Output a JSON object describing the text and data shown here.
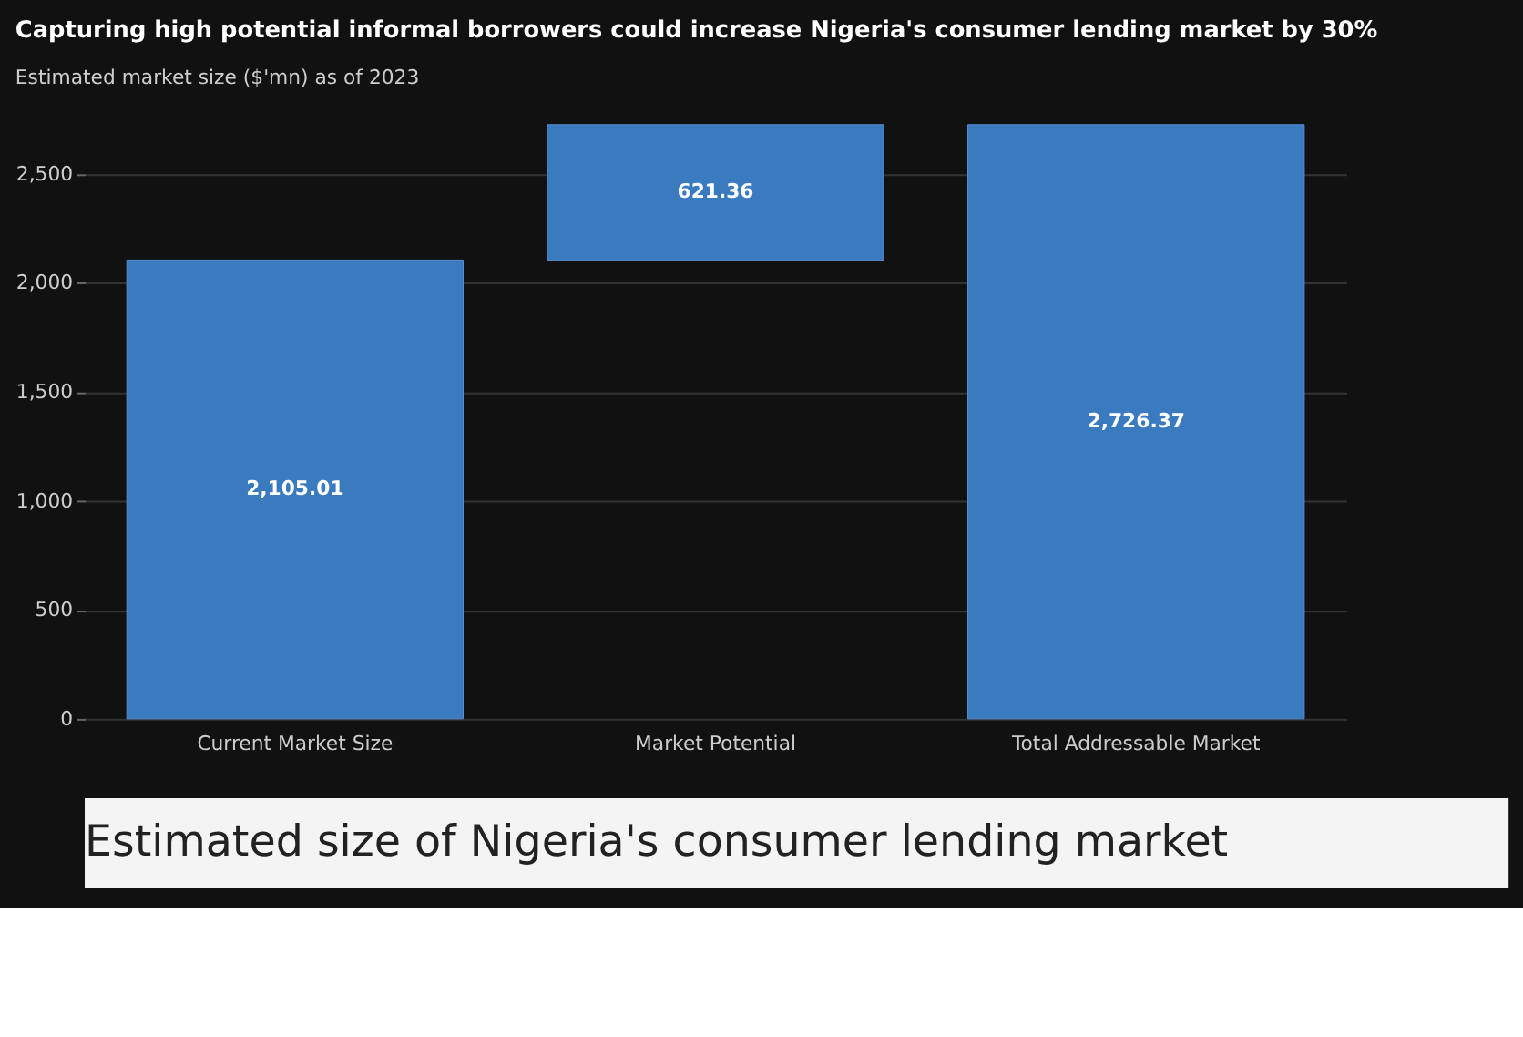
{
  "chart_data": {
    "type": "bar",
    "title": "Capturing high potential informal borrowers could increase Nigeria's consumer lending market by 30%",
    "subtitle": "Estimated market size ($'mn) as of 2023",
    "categories": [
      "Current Market Size",
      "Market Potential",
      "Total Addressable Market"
    ],
    "values": [
      2105.01,
      621.36,
      2726.37
    ],
    "base": [
      0,
      2105.01,
      0
    ],
    "color": "#3a7abf",
    "ylim": [
      0,
      2730
    ],
    "yticks": [
      0,
      {
        "value": 500,
        "label": "500"
      },
      {
        "value": 1000,
        "label": "1,000"
      },
      {
        "value": 1500,
        "label": "1,500"
      },
      {
        "value": 2000,
        "label": "2,000"
      },
      {
        "value": 2500,
        "label": "2,500"
      }
    ],
    "grid": "y",
    "value_labels": [
      "2,105.01",
      "621.36",
      "2,726.37"
    ],
    "annotations": [
      "Estimated size of Nigeria's consumer lending market"
    ]
  }
}
